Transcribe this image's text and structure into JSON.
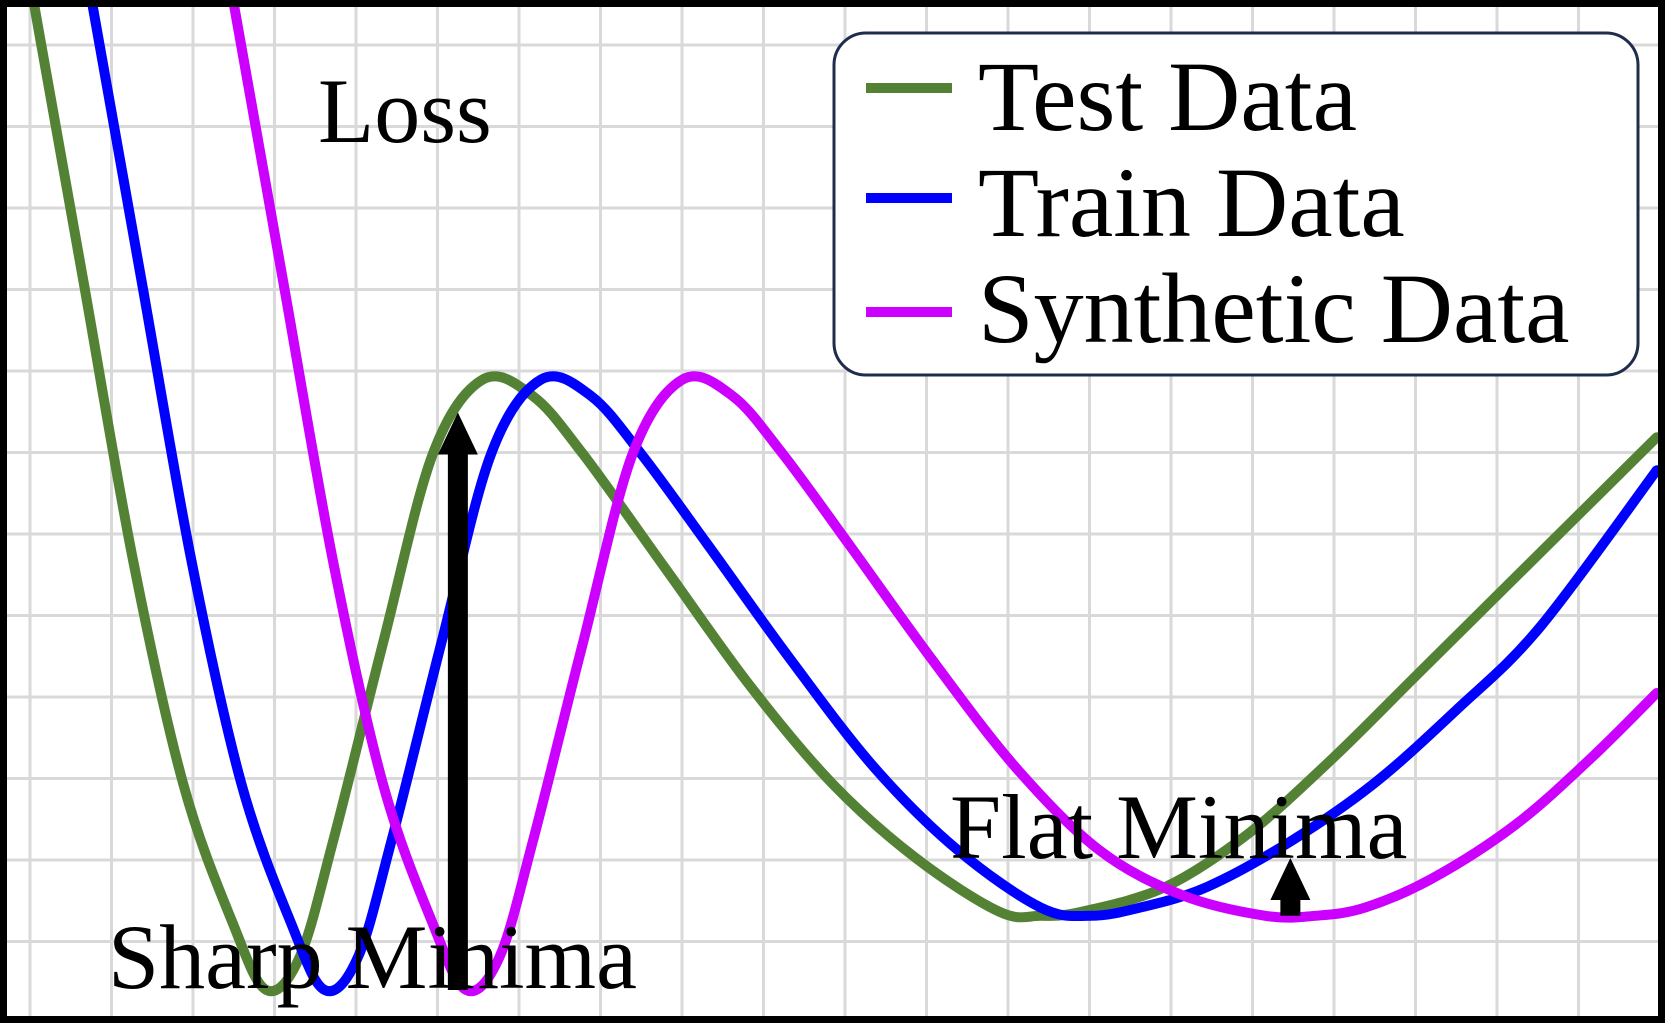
{
  "chart_data": {
    "type": "line",
    "title": "",
    "xlabel": "",
    "ylabel": "Loss",
    "grid": true,
    "legend_position": "top-right",
    "xlim": [
      0,
      20
    ],
    "ylim": [
      0,
      12.4
    ],
    "series": [
      {
        "name": "Test Data",
        "color": "#548235",
        "x": [
          0.4,
          1.0,
          1.6,
          2.2,
          2.8,
          3.2,
          3.6,
          4.0,
          4.6,
          5.2,
          5.8,
          6.4,
          7.0,
          8.0,
          9.0,
          10.0,
          11.0,
          12.0,
          12.5,
          13.0,
          14.0,
          15.0,
          16.0,
          17.0,
          18.0,
          19.0,
          19.9
        ],
        "y": [
          12.4,
          9.0,
          5.6,
          2.9,
          1.2,
          0.4,
          0.8,
          2.2,
          4.6,
          6.9,
          7.8,
          7.6,
          6.9,
          5.5,
          4.1,
          2.9,
          2.0,
          1.35,
          1.3,
          1.35,
          1.65,
          2.3,
          3.2,
          4.2,
          5.2,
          6.2,
          7.1
        ]
      },
      {
        "name": "Train Data",
        "color": "#0000ff",
        "x": [
          1.1,
          1.7,
          2.3,
          2.9,
          3.5,
          3.9,
          4.3,
          4.7,
          5.3,
          5.9,
          6.5,
          7.1,
          7.7,
          8.5,
          9.5,
          10.5,
          11.5,
          12.5,
          13.1,
          13.7,
          14.5,
          15.5,
          16.5,
          17.5,
          18.5,
          19.9
        ],
        "y": [
          12.4,
          9.0,
          5.6,
          2.9,
          1.2,
          0.4,
          0.8,
          2.2,
          4.6,
          6.9,
          7.8,
          7.6,
          6.9,
          5.8,
          4.4,
          3.1,
          2.1,
          1.4,
          1.3,
          1.4,
          1.65,
          2.2,
          2.9,
          3.8,
          4.8,
          6.7
        ]
      },
      {
        "name": "Synthetic Data",
        "color": "#cc00ff",
        "x": [
          2.8,
          3.4,
          4.0,
          4.6,
          5.2,
          5.6,
          6.0,
          6.4,
          7.0,
          7.6,
          8.2,
          8.8,
          9.4,
          10.2,
          11.2,
          12.2,
          13.2,
          14.2,
          15.2,
          15.8,
          16.4,
          17.2,
          18.2,
          19.1,
          19.9
        ],
        "y": [
          12.4,
          9.0,
          5.6,
          2.9,
          1.2,
          0.4,
          0.8,
          2.2,
          4.6,
          6.9,
          7.8,
          7.6,
          6.9,
          5.8,
          4.4,
          3.1,
          2.1,
          1.55,
          1.3,
          1.3,
          1.4,
          1.75,
          2.4,
          3.2,
          4.0
        ]
      }
    ],
    "annotations": [
      {
        "text": "Sharp Minima"
      },
      {
        "text": "Flat Minima"
      }
    ],
    "arrows": [
      {
        "name": "sharp-minima-gap",
        "x": 5.5,
        "y_from": 0.4,
        "y_to": 7.4
      },
      {
        "name": "flat-minima-gap",
        "x": 15.5,
        "y_from": 1.3,
        "y_to": 2.0
      }
    ]
  }
}
